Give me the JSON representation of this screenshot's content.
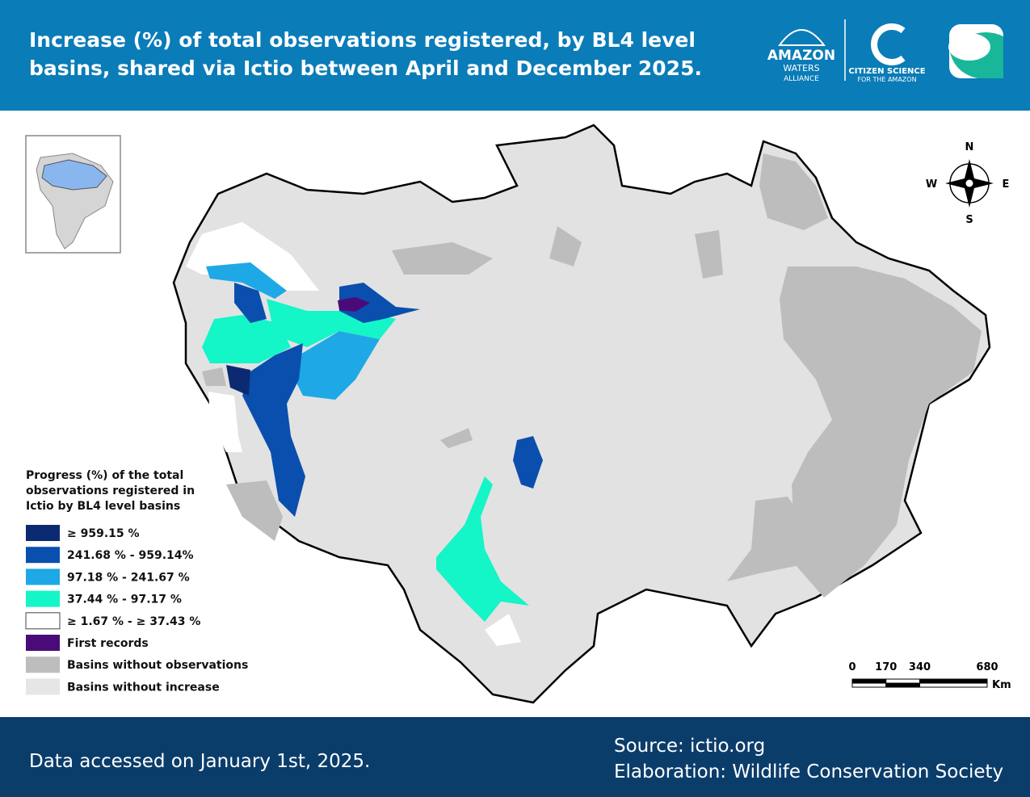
{
  "header": {
    "title_lines": [
      "Increase (%) of total observations registered, by BL4 level",
      "basins, shared via Ictio between April and December 2025."
    ]
  },
  "logos": {
    "amazon_waters": [
      "AMAZON",
      "WATERS",
      "ALLIANCE"
    ],
    "citizen_science": [
      "CITIZEN SCIENCE",
      "FOR THE AMAZON"
    ]
  },
  "compass": {
    "n": "N",
    "w": "W",
    "e": "E",
    "s": "S"
  },
  "legend": {
    "title_lines": [
      "Progress (%) of the total",
      "observations registered in",
      "Ictio by BL4 level basins"
    ],
    "items": [
      {
        "label": "≥ 959.15 %",
        "color": "#0b2a72"
      },
      {
        "label": "241.68 % - 959.14%",
        "color": "#0a4fae"
      },
      {
        "label": "97.18 % - 241.67 %",
        "color": "#1ea8e6"
      },
      {
        "label": "37.44 % - 97.17 %",
        "color": "#14f5c8"
      },
      {
        "label": "≥ 1.67 % - ≥ 37.43 %",
        "color": "#ffffff"
      },
      {
        "label": "First records",
        "color": "#4a0b78"
      },
      {
        "label": "Basins without observations",
        "color": "#bdbdbd"
      },
      {
        "label": "Basins without increase",
        "color": "#e6e6e6"
      }
    ]
  },
  "scale_bar": {
    "ticks": [
      0,
      170,
      340,
      680
    ],
    "unit": "Km"
  },
  "footer": {
    "note": "Data accessed on January 1st, 2025.",
    "source": "Source: ictio.org",
    "credit": "Elaboration: Wildlife Conservation Society"
  }
}
